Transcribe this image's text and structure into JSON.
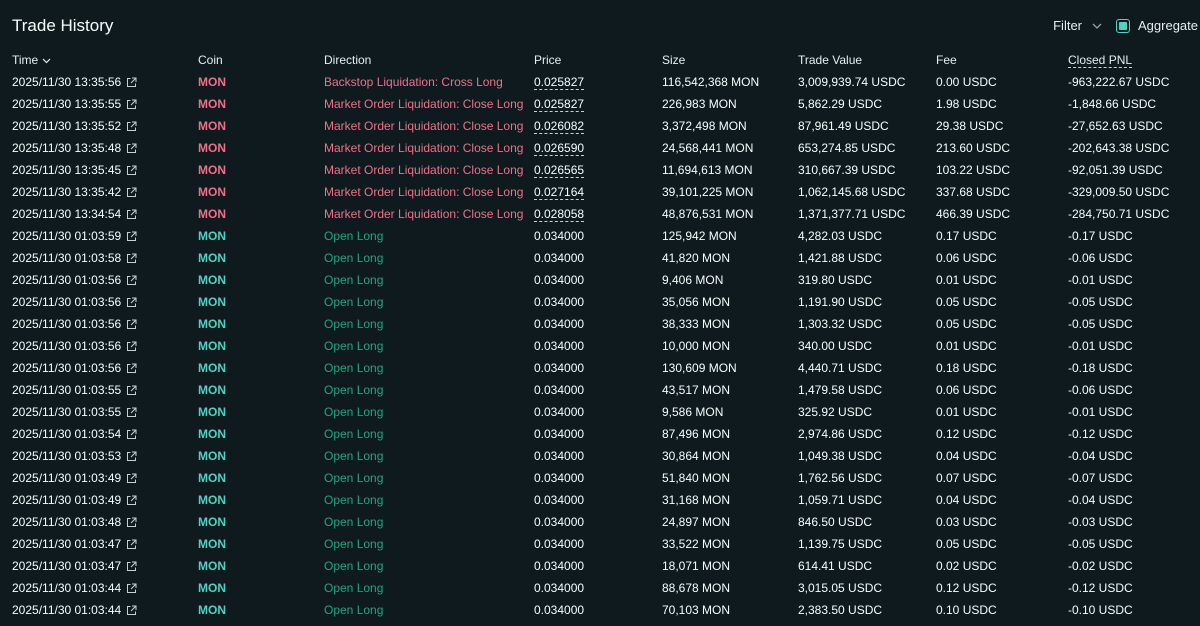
{
  "title": "Trade History",
  "controls": {
    "filter_label": "Filter",
    "aggregate_label": "Aggregate",
    "aggregate_checked": true
  },
  "columns": {
    "time": "Time",
    "coin": "Coin",
    "direction": "Direction",
    "price": "Price",
    "size": "Size",
    "trade_value": "Trade Value",
    "fee": "Fee",
    "closed_pnl": "Closed PNL"
  },
  "colors": {
    "background": "#0f1a1f",
    "short_red": "#ed7088",
    "long_green": "#1fa67d",
    "coin_green": "#50d2c1",
    "accent": "#50d2c1"
  },
  "rows": [
    {
      "time": "2025/11/30 13:35:56",
      "coin": "MON",
      "side": "red",
      "direction": "Backstop Liquidation: Cross Long",
      "price": "0.025827",
      "price_dashed": true,
      "size": "116,542,368 MON",
      "value": "3,009,939.74 USDC",
      "fee": "0.00 USDC",
      "pnl": "-963,222.67 USDC"
    },
    {
      "time": "2025/11/30 13:35:55",
      "coin": "MON",
      "side": "red",
      "direction": "Market Order Liquidation: Close Long",
      "price": "0.025827",
      "price_dashed": true,
      "size": "226,983 MON",
      "value": "5,862.29 USDC",
      "fee": "1.98 USDC",
      "pnl": "-1,848.66 USDC"
    },
    {
      "time": "2025/11/30 13:35:52",
      "coin": "MON",
      "side": "red",
      "direction": "Market Order Liquidation: Close Long",
      "price": "0.026082",
      "price_dashed": true,
      "size": "3,372,498 MON",
      "value": "87,961.49 USDC",
      "fee": "29.38 USDC",
      "pnl": "-27,652.63 USDC"
    },
    {
      "time": "2025/11/30 13:35:48",
      "coin": "MON",
      "side": "red",
      "direction": "Market Order Liquidation: Close Long",
      "price": "0.026590",
      "price_dashed": true,
      "size": "24,568,441 MON",
      "value": "653,274.85 USDC",
      "fee": "213.60 USDC",
      "pnl": "-202,643.38 USDC"
    },
    {
      "time": "2025/11/30 13:35:45",
      "coin": "MON",
      "side": "red",
      "direction": "Market Order Liquidation: Close Long",
      "price": "0.026565",
      "price_dashed": true,
      "size": "11,694,613 MON",
      "value": "310,667.39 USDC",
      "fee": "103.22 USDC",
      "pnl": "-92,051.39 USDC"
    },
    {
      "time": "2025/11/30 13:35:42",
      "coin": "MON",
      "side": "red",
      "direction": "Market Order Liquidation: Close Long",
      "price": "0.027164",
      "price_dashed": true,
      "size": "39,101,225 MON",
      "value": "1,062,145.68 USDC",
      "fee": "337.68 USDC",
      "pnl": "-329,009.50 USDC"
    },
    {
      "time": "2025/11/30 13:34:54",
      "coin": "MON",
      "side": "red",
      "direction": "Market Order Liquidation: Close Long",
      "price": "0.028058",
      "price_dashed": true,
      "size": "48,876,531 MON",
      "value": "1,371,377.71 USDC",
      "fee": "466.39 USDC",
      "pnl": "-284,750.71 USDC"
    },
    {
      "time": "2025/11/30 01:03:59",
      "coin": "MON",
      "side": "green",
      "direction": "Open Long",
      "price": "0.034000",
      "price_dashed": false,
      "size": "125,942 MON",
      "value": "4,282.03 USDC",
      "fee": "0.17 USDC",
      "pnl": "-0.17 USDC"
    },
    {
      "time": "2025/11/30 01:03:58",
      "coin": "MON",
      "side": "green",
      "direction": "Open Long",
      "price": "0.034000",
      "price_dashed": false,
      "size": "41,820 MON",
      "value": "1,421.88 USDC",
      "fee": "0.06 USDC",
      "pnl": "-0.06 USDC"
    },
    {
      "time": "2025/11/30 01:03:56",
      "coin": "MON",
      "side": "green",
      "direction": "Open Long",
      "price": "0.034000",
      "price_dashed": false,
      "size": "9,406 MON",
      "value": "319.80 USDC",
      "fee": "0.01 USDC",
      "pnl": "-0.01 USDC"
    },
    {
      "time": "2025/11/30 01:03:56",
      "coin": "MON",
      "side": "green",
      "direction": "Open Long",
      "price": "0.034000",
      "price_dashed": false,
      "size": "35,056 MON",
      "value": "1,191.90 USDC",
      "fee": "0.05 USDC",
      "pnl": "-0.05 USDC"
    },
    {
      "time": "2025/11/30 01:03:56",
      "coin": "MON",
      "side": "green",
      "direction": "Open Long",
      "price": "0.034000",
      "price_dashed": false,
      "size": "38,333 MON",
      "value": "1,303.32 USDC",
      "fee": "0.05 USDC",
      "pnl": "-0.05 USDC"
    },
    {
      "time": "2025/11/30 01:03:56",
      "coin": "MON",
      "side": "green",
      "direction": "Open Long",
      "price": "0.034000",
      "price_dashed": false,
      "size": "10,000 MON",
      "value": "340.00 USDC",
      "fee": "0.01 USDC",
      "pnl": "-0.01 USDC"
    },
    {
      "time": "2025/11/30 01:03:56",
      "coin": "MON",
      "side": "green",
      "direction": "Open Long",
      "price": "0.034000",
      "price_dashed": false,
      "size": "130,609 MON",
      "value": "4,440.71 USDC",
      "fee": "0.18 USDC",
      "pnl": "-0.18 USDC"
    },
    {
      "time": "2025/11/30 01:03:55",
      "coin": "MON",
      "side": "green",
      "direction": "Open Long",
      "price": "0.034000",
      "price_dashed": false,
      "size": "43,517 MON",
      "value": "1,479.58 USDC",
      "fee": "0.06 USDC",
      "pnl": "-0.06 USDC"
    },
    {
      "time": "2025/11/30 01:03:55",
      "coin": "MON",
      "side": "green",
      "direction": "Open Long",
      "price": "0.034000",
      "price_dashed": false,
      "size": "9,586 MON",
      "value": "325.92 USDC",
      "fee": "0.01 USDC",
      "pnl": "-0.01 USDC"
    },
    {
      "time": "2025/11/30 01:03:54",
      "coin": "MON",
      "side": "green",
      "direction": "Open Long",
      "price": "0.034000",
      "price_dashed": false,
      "size": "87,496 MON",
      "value": "2,974.86 USDC",
      "fee": "0.12 USDC",
      "pnl": "-0.12 USDC"
    },
    {
      "time": "2025/11/30 01:03:53",
      "coin": "MON",
      "side": "green",
      "direction": "Open Long",
      "price": "0.034000",
      "price_dashed": false,
      "size": "30,864 MON",
      "value": "1,049.38 USDC",
      "fee": "0.04 USDC",
      "pnl": "-0.04 USDC"
    },
    {
      "time": "2025/11/30 01:03:49",
      "coin": "MON",
      "side": "green",
      "direction": "Open Long",
      "price": "0.034000",
      "price_dashed": false,
      "size": "51,840 MON",
      "value": "1,762.56 USDC",
      "fee": "0.07 USDC",
      "pnl": "-0.07 USDC"
    },
    {
      "time": "2025/11/30 01:03:49",
      "coin": "MON",
      "side": "green",
      "direction": "Open Long",
      "price": "0.034000",
      "price_dashed": false,
      "size": "31,168 MON",
      "value": "1,059.71 USDC",
      "fee": "0.04 USDC",
      "pnl": "-0.04 USDC"
    },
    {
      "time": "2025/11/30 01:03:48",
      "coin": "MON",
      "side": "green",
      "direction": "Open Long",
      "price": "0.034000",
      "price_dashed": false,
      "size": "24,897 MON",
      "value": "846.50 USDC",
      "fee": "0.03 USDC",
      "pnl": "-0.03 USDC"
    },
    {
      "time": "2025/11/30 01:03:47",
      "coin": "MON",
      "side": "green",
      "direction": "Open Long",
      "price": "0.034000",
      "price_dashed": false,
      "size": "33,522 MON",
      "value": "1,139.75 USDC",
      "fee": "0.05 USDC",
      "pnl": "-0.05 USDC"
    },
    {
      "time": "2025/11/30 01:03:47",
      "coin": "MON",
      "side": "green",
      "direction": "Open Long",
      "price": "0.034000",
      "price_dashed": false,
      "size": "18,071 MON",
      "value": "614.41 USDC",
      "fee": "0.02 USDC",
      "pnl": "-0.02 USDC"
    },
    {
      "time": "2025/11/30 01:03:44",
      "coin": "MON",
      "side": "green",
      "direction": "Open Long",
      "price": "0.034000",
      "price_dashed": false,
      "size": "88,678 MON",
      "value": "3,015.05 USDC",
      "fee": "0.12 USDC",
      "pnl": "-0.12 USDC"
    },
    {
      "time": "2025/11/30 01:03:44",
      "coin": "MON",
      "side": "green",
      "direction": "Open Long",
      "price": "0.034000",
      "price_dashed": false,
      "size": "70,103 MON",
      "value": "2,383.50 USDC",
      "fee": "0.10 USDC",
      "pnl": "-0.10 USDC"
    }
  ]
}
